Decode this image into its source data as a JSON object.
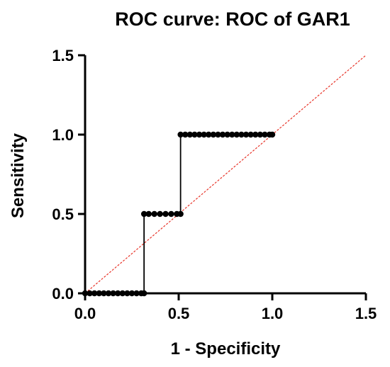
{
  "chart_data": {
    "type": "line",
    "title": "ROC curve: ROC of GAR1",
    "xlabel": "1 - Specificity",
    "ylabel": "Sensitivity",
    "xlim": [
      0,
      1.5
    ],
    "ylim": [
      0,
      1.5
    ],
    "xticks": [
      "0.0",
      "0.5",
      "1.0",
      "1.5"
    ],
    "yticks": [
      "0.0",
      "0.5",
      "1.0",
      "1.5"
    ],
    "grid": false,
    "legend": "none",
    "series": [
      {
        "x": [
          0.0,
          0.025,
          0.05,
          0.075,
          0.1,
          0.125,
          0.15,
          0.175,
          0.2,
          0.225,
          0.25,
          0.275,
          0.3,
          0.315,
          0.315,
          0.34,
          0.37,
          0.4,
          0.43,
          0.46,
          0.49,
          0.51,
          0.51,
          0.535,
          0.56,
          0.585,
          0.61,
          0.635,
          0.66,
          0.685,
          0.71,
          0.735,
          0.76,
          0.785,
          0.81,
          0.835,
          0.86,
          0.885,
          0.91,
          0.935,
          0.96,
          0.985,
          1.0
        ],
        "y": [
          0.0,
          0.0,
          0.0,
          0.0,
          0.0,
          0.0,
          0.0,
          0.0,
          0.0,
          0.0,
          0.0,
          0.0,
          0.0,
          0.0,
          0.5,
          0.5,
          0.5,
          0.5,
          0.5,
          0.5,
          0.5,
          0.5,
          1.0,
          1.0,
          1.0,
          1.0,
          1.0,
          1.0,
          1.0,
          1.0,
          1.0,
          1.0,
          1.0,
          1.0,
          1.0,
          1.0,
          1.0,
          1.0,
          1.0,
          1.0,
          1.0,
          1.0,
          1.0
        ],
        "color": "#000000"
      }
    ],
    "reference_line": {
      "x": [
        0,
        1.5
      ],
      "y": [
        0,
        1.5
      ],
      "color": "#e8352a",
      "style": "dashed"
    }
  }
}
